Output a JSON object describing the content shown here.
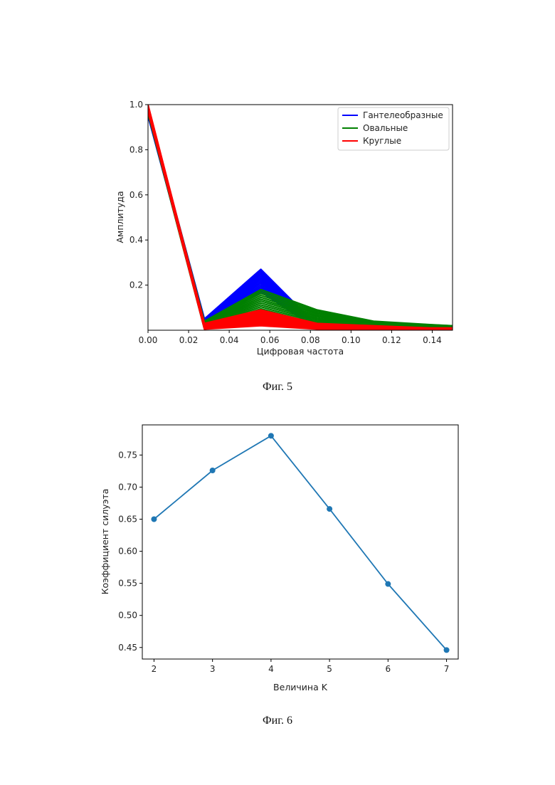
{
  "chart_data": [
    {
      "type": "line",
      "caption": "Фиг. 5",
      "xlabel": "Цифровая частота",
      "ylabel": "Амплитуда",
      "xlim": [
        0,
        0.15
      ],
      "ylim": [
        0,
        1.0
      ],
      "xticks": [
        0.0,
        0.02,
        0.04,
        0.06,
        0.08,
        0.1,
        0.12,
        0.14
      ],
      "xtick_labels": [
        "0.00",
        "0.02",
        "0.04",
        "0.06",
        "0.08",
        "0.10",
        "0.12",
        "0.14"
      ],
      "yticks": [
        0.2,
        0.4,
        0.6,
        0.8,
        1.0
      ],
      "ytick_labels": [
        "0.2",
        "0.4",
        "0.6",
        "0.8",
        "1.0"
      ],
      "legend_position": "top-right",
      "x": [
        0.0,
        0.0278,
        0.0556,
        0.0833,
        0.1111,
        0.1389,
        0.15
      ],
      "series": [
        {
          "name": "Гантелеобразные",
          "color": "#0000ff",
          "lower": [
            0.95,
            0.02,
            0.17,
            0.005,
            0.02,
            0.01,
            0.01
          ],
          "upper": [
            0.98,
            0.05,
            0.27,
            0.02,
            0.03,
            0.015,
            0.012
          ]
        },
        {
          "name": "Овальные",
          "color": "#008000",
          "lower": [
            0.96,
            0.005,
            0.07,
            0.01,
            0.01,
            0.01,
            0.01
          ],
          "upper": [
            0.99,
            0.04,
            0.18,
            0.09,
            0.04,
            0.025,
            0.02
          ]
        },
        {
          "name": "Круглые",
          "color": "#ff0000",
          "lower": [
            0.97,
            0.005,
            0.02,
            0.005,
            0.005,
            0.005,
            0.005
          ],
          "upper": [
            1.0,
            0.03,
            0.09,
            0.03,
            0.02,
            0.01,
            0.01
          ]
        }
      ]
    },
    {
      "type": "line",
      "caption": "Фиг. 6",
      "xlabel": "Величина K",
      "ylabel": "Коэффициент силуэта",
      "xlim": [
        1.8,
        7.2
      ],
      "ylim": [
        0.432,
        0.797
      ],
      "xticks": [
        2,
        3,
        4,
        5,
        6,
        7
      ],
      "xtick_labels": [
        "2",
        "3",
        "4",
        "5",
        "6",
        "7"
      ],
      "yticks": [
        0.45,
        0.5,
        0.55,
        0.6,
        0.65,
        0.7,
        0.75
      ],
      "ytick_labels": [
        "0.45",
        "0.50",
        "0.55",
        "0.60",
        "0.65",
        "0.70",
        "0.75"
      ],
      "x": [
        2,
        3,
        4,
        5,
        6,
        7
      ],
      "series": [
        {
          "color": "#1f77b4",
          "values": [
            0.65,
            0.726,
            0.78,
            0.666,
            0.549,
            0.446
          ]
        }
      ]
    }
  ]
}
